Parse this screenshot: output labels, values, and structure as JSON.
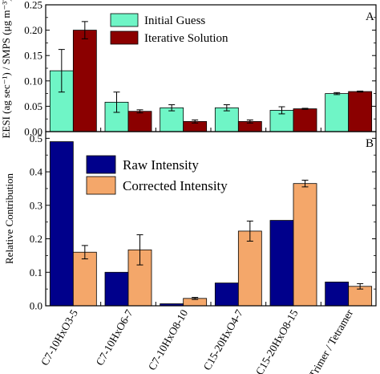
{
  "chart_data": [
    {
      "panel": "A",
      "type": "bar",
      "ylabel": "EESI (ag sec⁻¹) / SMPS (μg m⁻³)",
      "ylim": [
        0,
        0.25
      ],
      "yticks": [
        "0.00",
        "0.05",
        "0.10",
        "0.15",
        "0.20",
        "0.25"
      ],
      "categories": [
        "C7-10HxO3-5",
        "C7-10HxO6-7",
        "C7-10HxO8-10",
        "C15-20HxO4-7",
        "C15-20HxO8-15",
        "Trimer / Tetramer"
      ],
      "legend_position": "top-center",
      "series": [
        {
          "name": "Initial Guess",
          "color": "#6ff5c6",
          "values": [
            0.12,
            0.058,
            0.047,
            0.047,
            0.042,
            0.075
          ],
          "errors": [
            0.042,
            0.02,
            0.006,
            0.006,
            0.007,
            0.002
          ]
        },
        {
          "name": "Iterative Solution",
          "color": "#8b0000",
          "values": [
            0.2,
            0.04,
            0.02,
            0.02,
            0.045,
            0.079
          ],
          "errors": [
            0.017,
            0.003,
            0.003,
            0.003,
            0.001,
            0.001
          ]
        }
      ]
    },
    {
      "panel": "B",
      "type": "bar",
      "ylabel": "Relative Contribution",
      "ylim": [
        0,
        0.52
      ],
      "yticks": [
        "0.0",
        "0.1",
        "0.2",
        "0.3",
        "0.4",
        "0.5"
      ],
      "categories": [
        "C7-10HxO3-5",
        "C7-10HxO6-7",
        "C7-10HxO8-10",
        "C15-20HxO4-7",
        "C15-20HxO8-15",
        "Trimer / Tetramer"
      ],
      "legend_position": "top-left",
      "series": [
        {
          "name": "Raw Intensity",
          "color": "#00008b",
          "values": [
            0.49,
            0.1,
            0.006,
            0.068,
            0.255,
            0.071
          ],
          "errors": [
            0,
            0,
            0,
            0,
            0,
            0
          ]
        },
        {
          "name": "Corrected Intensity",
          "color": "#f4a76a",
          "values": [
            0.16,
            0.167,
            0.022,
            0.223,
            0.365,
            0.058
          ],
          "errors": [
            0.02,
            0.045,
            0.003,
            0.03,
            0.01,
            0.008
          ]
        }
      ]
    }
  ]
}
